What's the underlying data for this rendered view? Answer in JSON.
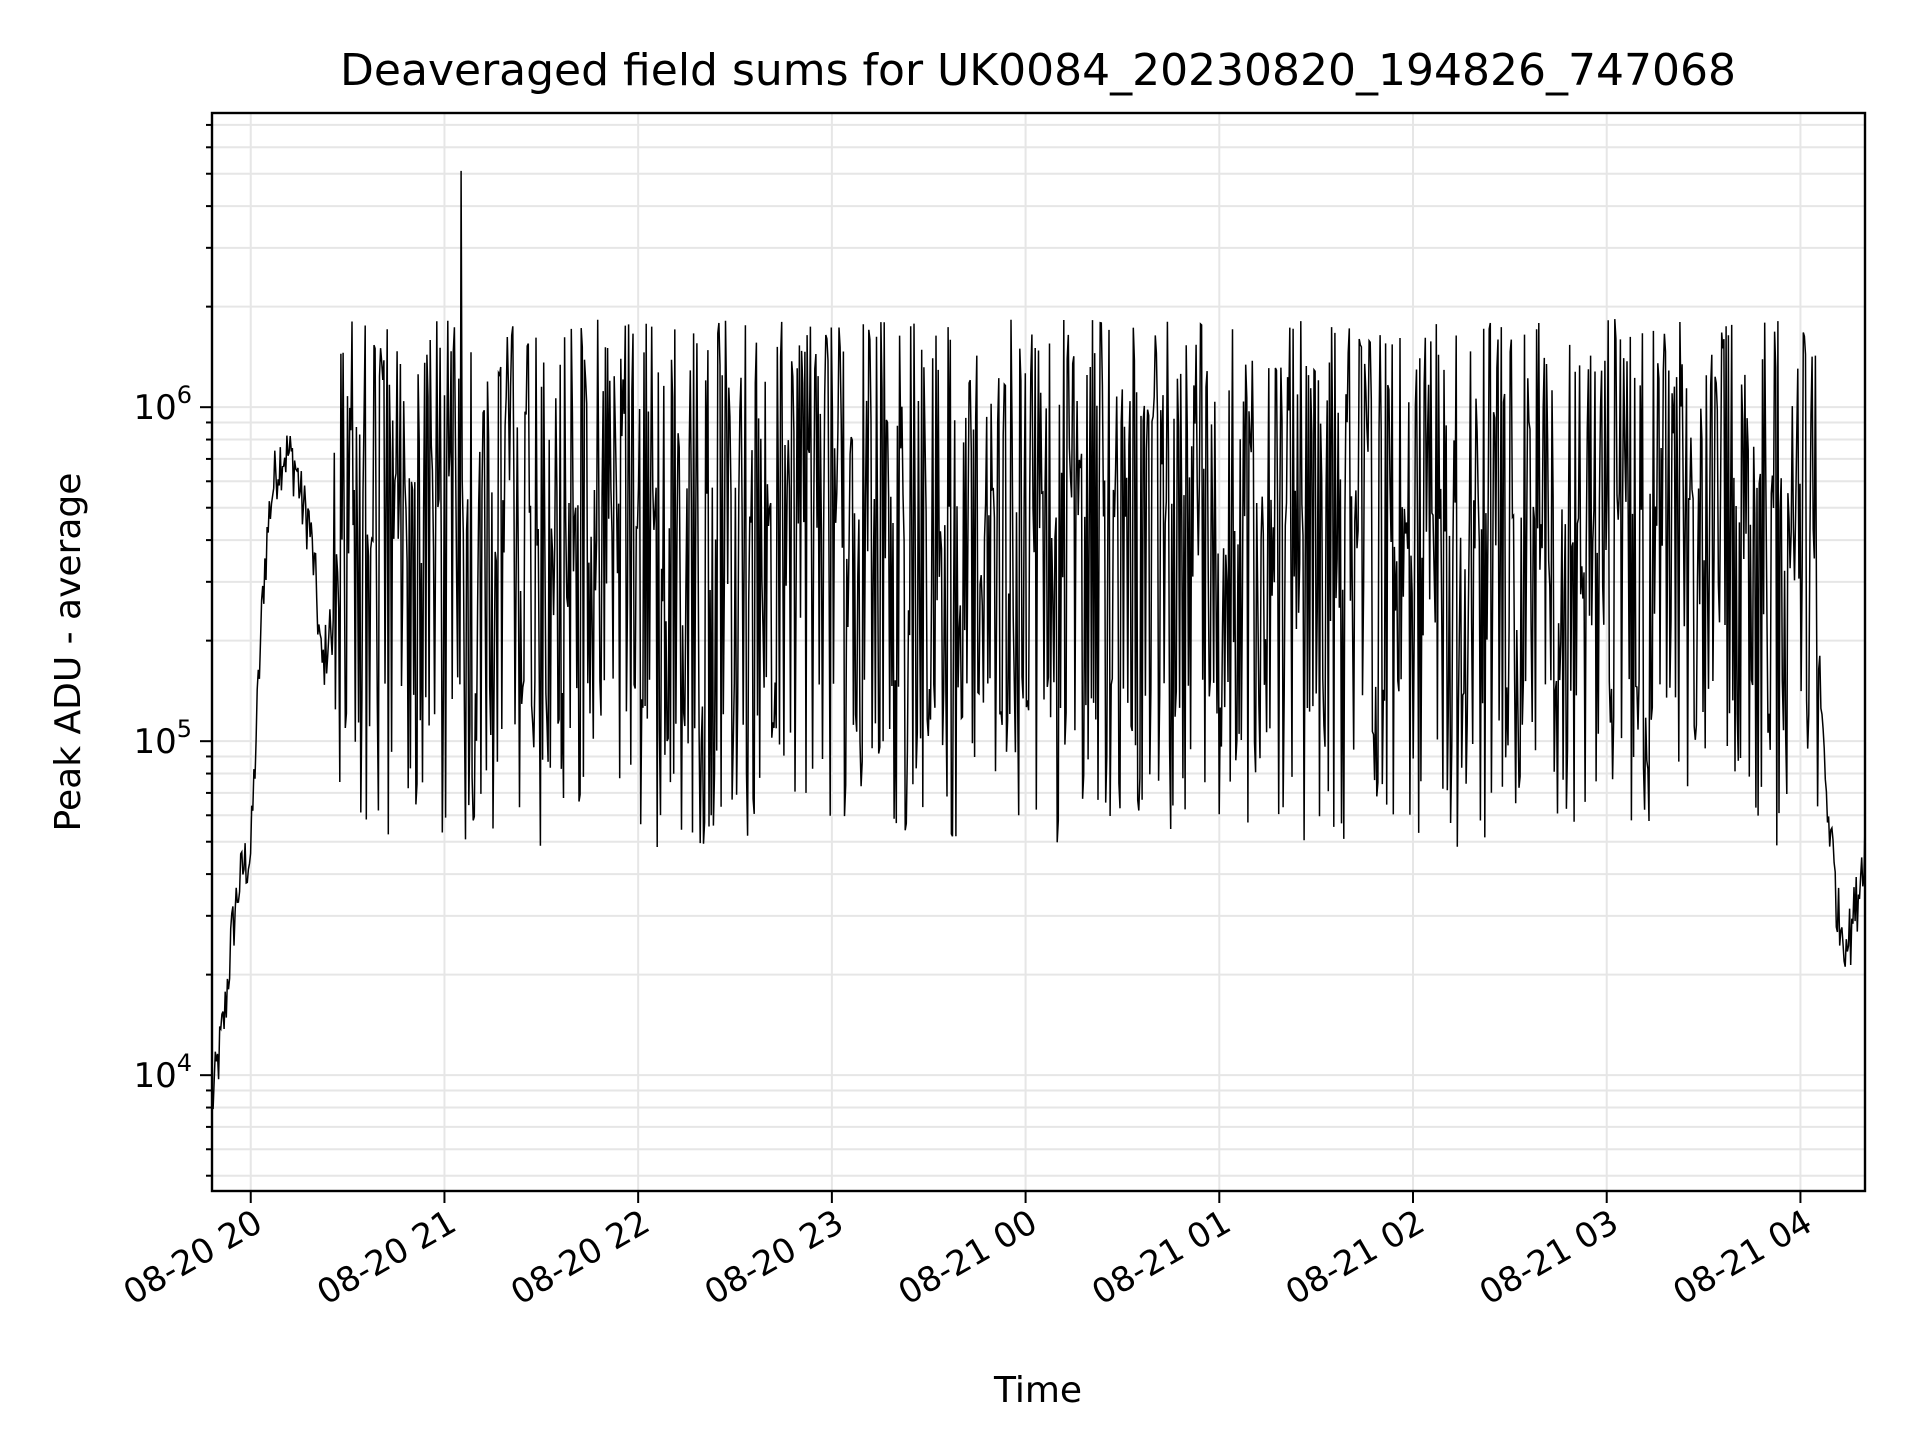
{
  "chart_data": {
    "type": "line",
    "title": "Deaveraged field sums for UK0084_20230820_194826_747068",
    "xlabel": "Time",
    "ylabel": "Peak ADU - average",
    "yscale": "log",
    "grid": true,
    "legend": "none",
    "line_color": "#000000",
    "xlim": [
      "2023-08-20 19:48",
      "2023-08-21 04:20"
    ],
    "ylim": [
      4500,
      7600000
    ],
    "x_ticks": [
      "08-20 20",
      "08-20 21",
      "08-20 22",
      "08-20 23",
      "08-21 00",
      "08-21 01",
      "08-21 02",
      "08-21 03",
      "08-21 04"
    ],
    "y_ticks": [
      {
        "base": "10",
        "exp": "4",
        "value": 10000
      },
      {
        "base": "10",
        "exp": "5",
        "value": 100000
      },
      {
        "base": "10",
        "exp": "6",
        "value": 1000000
      }
    ],
    "series": [
      {
        "x": [
          "2023-08-20 19:48",
          "2023-08-20 19:50",
          "2023-08-20 19:52",
          "2023-08-20 19:54",
          "2023-08-20 19:56",
          "2023-08-20 19:58",
          "2023-08-20 20:00",
          "2023-08-20 20:02",
          "2023-08-20 20:04",
          "2023-08-20 20:06",
          "2023-08-20 20:08",
          "2023-08-20 20:10",
          "2023-08-20 20:12",
          "2023-08-20 20:14",
          "2023-08-20 20:16",
          "2023-08-20 20:18",
          "2023-08-20 20:20",
          "2023-08-20 20:22",
          "2023-08-20 20:30",
          "2023-08-20 20:40",
          "2023-08-20 20:50",
          "2023-08-20 21:00",
          "2023-08-20 21:10",
          "2023-08-20 21:30",
          "2023-08-20 22:00",
          "2023-08-20 22:30",
          "2023-08-20 23:00",
          "2023-08-20 23:30",
          "2023-08-21 00:00",
          "2023-08-21 00:20",
          "2023-08-21 00:30",
          "2023-08-21 00:40",
          "2023-08-21 00:50",
          "2023-08-21 01:00",
          "2023-08-21 01:30",
          "2023-08-21 02:00",
          "2023-08-21 02:30",
          "2023-08-21 03:00",
          "2023-08-21 03:30",
          "2023-08-21 03:50",
          "2023-08-21 04:00",
          "2023-08-21 04:04",
          "2023-08-21 04:06",
          "2023-08-21 04:08",
          "2023-08-21 04:10",
          "2023-08-21 04:12",
          "2023-08-21 04:15",
          "2023-08-21 04:18",
          "2023-08-21 04:20"
        ],
        "values": [
          8000,
          11000,
          15000,
          25000,
          35000,
          42000,
          45000,
          120000,
          300000,
          500000,
          650000,
          720000,
          700000,
          650000,
          500000,
          450000,
          300000,
          160000,
          400000,
          500000,
          450000,
          500000,
          420000,
          380000,
          400000,
          390000,
          380000,
          360000,
          380000,
          550000,
          700000,
          800000,
          600000,
          320000,
          400000,
          380000,
          350000,
          360000,
          380000,
          420000,
          380000,
          350000,
          150000,
          70000,
          45000,
          28000,
          25000,
          35000,
          50000
        ],
        "fluctuation": {
          "from": "2023-08-20 20:25",
          "to": "2023-08-21 04:06",
          "upper_envelope": 1600000,
          "lower_envelope": 60000,
          "max_peak": 5100000
        }
      }
    ]
  }
}
